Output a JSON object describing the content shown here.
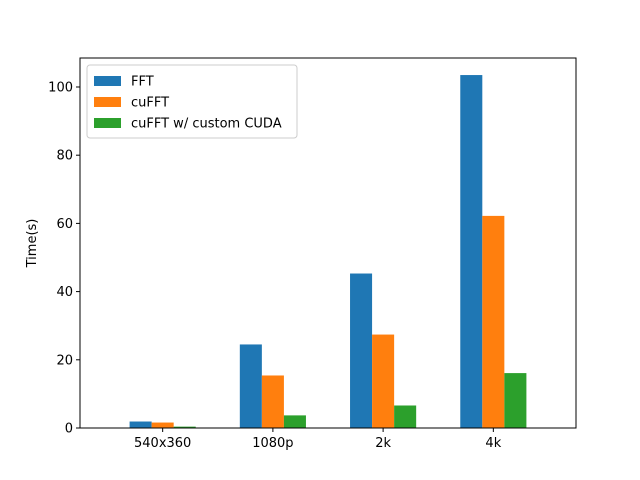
{
  "chart_data": {
    "type": "bar",
    "title": "",
    "xlabel": "",
    "ylabel": "Time(s)",
    "ylim": [
      0,
      108.5
    ],
    "yticks": [
      0,
      20,
      40,
      60,
      80,
      100
    ],
    "grid": false,
    "legend_position": "top-left",
    "categories": [
      "540x360",
      "1080p",
      "2k",
      "4k"
    ],
    "series": [
      {
        "name": "FFT",
        "color": "#1f77b4",
        "values": [
          1.9,
          24.5,
          45.3,
          103.5
        ]
      },
      {
        "name": "cuFFT",
        "color": "#ff7f0e",
        "values": [
          1.6,
          15.4,
          27.4,
          62.2
        ]
      },
      {
        "name": "cuFFT w/ custom CUDA",
        "color": "#2ca02c",
        "values": [
          0.4,
          3.7,
          6.6,
          16.1
        ]
      }
    ]
  }
}
